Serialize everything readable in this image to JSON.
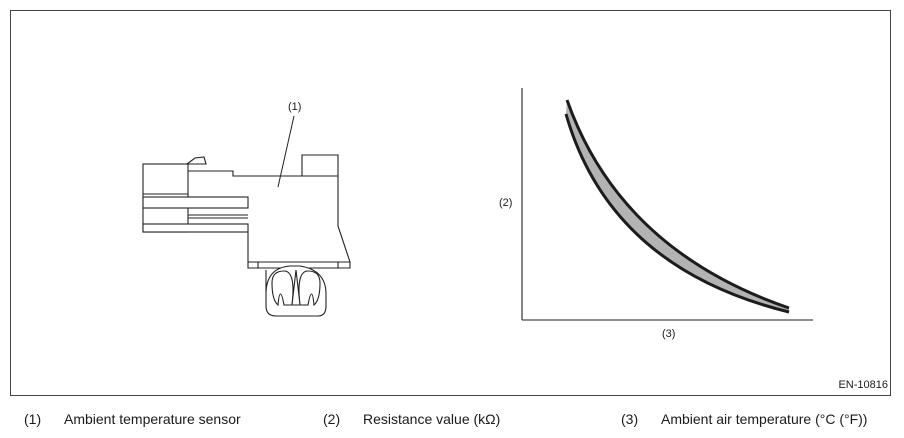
{
  "figure": {
    "id": "EN-10816",
    "callouts": {
      "sensor": "(1)",
      "y_axis": "(2)",
      "x_axis": "(3)"
    }
  },
  "legend": [
    {
      "num": "(1)",
      "text": "Ambient temperature sensor"
    },
    {
      "num": "(2)",
      "text": "Resistance value (kΩ)"
    },
    {
      "num": "(3)",
      "text": "Ambient air temperature (°C (°F))"
    }
  ]
}
